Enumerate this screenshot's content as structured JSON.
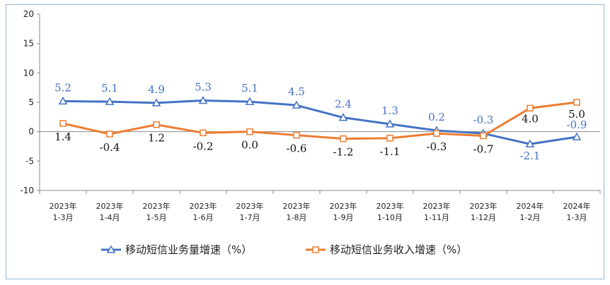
{
  "chart_data": {
    "type": "line",
    "categories": [
      [
        "2023年",
        "1-3月"
      ],
      [
        "2023年",
        "1-4月"
      ],
      [
        "2023年",
        "1-5月"
      ],
      [
        "2023年",
        "1-6月"
      ],
      [
        "2023年",
        "1-7月"
      ],
      [
        "2023年",
        "1-8月"
      ],
      [
        "2023年",
        "1-9月"
      ],
      [
        "2023年",
        "1-10月"
      ],
      [
        "2023年",
        "1-11月"
      ],
      [
        "2023年",
        "1-12月"
      ],
      [
        "2024年",
        "1-2月"
      ],
      [
        "2024年",
        "1-3月"
      ]
    ],
    "series": [
      {
        "name": "移动短信业务量增速（%）",
        "color": "#4472c4",
        "marker": "triangle",
        "values": [
          5.2,
          5.1,
          4.9,
          5.3,
          5.1,
          4.5,
          2.4,
          1.3,
          0.2,
          -0.3,
          -2.1,
          -0.9
        ],
        "labels": [
          "5.2",
          "5.1",
          "4.9",
          "5.3",
          "5.1",
          "4.5",
          "2.4",
          "1.3",
          "0.2",
          "-0.3",
          "-2.1",
          "-0.9"
        ]
      },
      {
        "name": "移动短信业务收入增速（%）",
        "color": "#ed7d31",
        "marker": "square",
        "values": [
          1.4,
          -0.4,
          1.2,
          -0.2,
          0.0,
          -0.6,
          -1.2,
          -1.1,
          -0.3,
          -0.7,
          4.0,
          5.0
        ],
        "labels": [
          "1.4",
          "-0.4",
          "1.2",
          "-0.2",
          "0.0",
          "-0.6",
          "-1.2",
          "-1.1",
          "-0.3",
          "-0.7",
          "4.0",
          "5.0"
        ]
      }
    ],
    "yticks": [
      "20",
      "15",
      "10",
      "5",
      "0",
      "-5",
      "-10"
    ],
    "ylim": [
      -10,
      20
    ],
    "title": "",
    "xlabel": "",
    "ylabel": "",
    "legend_position": "bottom"
  }
}
